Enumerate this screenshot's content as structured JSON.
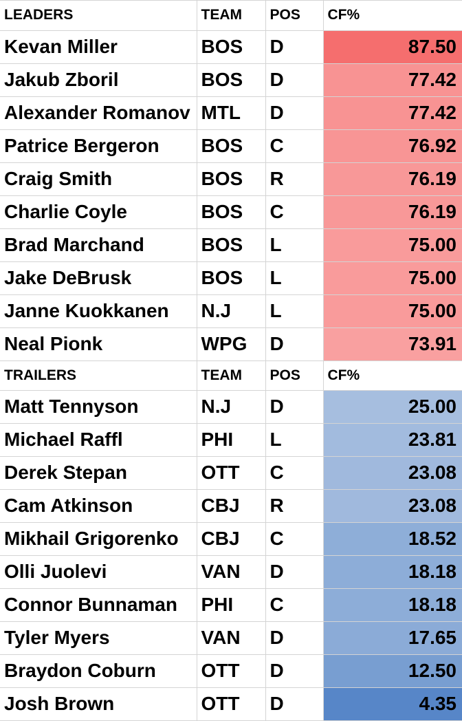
{
  "leaders": {
    "header": {
      "name": "LEADERS",
      "team": "TEAM",
      "pos": "POS",
      "cf": "CF%"
    },
    "rows": [
      {
        "name": "Kevan Miller",
        "team": "BOS",
        "pos": "D",
        "cf": "87.50",
        "color": "#f56e6e"
      },
      {
        "name": "Jakub Zboril",
        "team": "BOS",
        "pos": "D",
        "cf": "77.42",
        "color": "#f89393"
      },
      {
        "name": "Alexander Romanov",
        "team": "MTL",
        "pos": "D",
        "cf": "77.42",
        "color": "#f89393"
      },
      {
        "name": "Patrice Bergeron",
        "team": "BOS",
        "pos": "C",
        "cf": "76.92",
        "color": "#f89595"
      },
      {
        "name": "Craig Smith",
        "team": "BOS",
        "pos": "R",
        "cf": "76.19",
        "color": "#f89898"
      },
      {
        "name": "Charlie Coyle",
        "team": "BOS",
        "pos": "C",
        "cf": "76.19",
        "color": "#f89898"
      },
      {
        "name": "Brad Marchand",
        "team": "BOS",
        "pos": "L",
        "cf": "75.00",
        "color": "#f99b9b"
      },
      {
        "name": "Jake DeBrusk",
        "team": "BOS",
        "pos": "L",
        "cf": "75.00",
        "color": "#f99b9b"
      },
      {
        "name": "Janne Kuokkanen",
        "team": "N.J",
        "pos": "L",
        "cf": "75.00",
        "color": "#f99b9b"
      },
      {
        "name": "Neal Pionk",
        "team": "WPG",
        "pos": "D",
        "cf": "73.91",
        "color": "#f9a0a0"
      }
    ]
  },
  "trailers": {
    "header": {
      "name": "TRAILERS",
      "team": "TEAM",
      "pos": "POS",
      "cf": "CF%"
    },
    "rows": [
      {
        "name": "Matt Tennyson",
        "team": "N.J",
        "pos": "D",
        "cf": "25.00",
        "color": "#a6bedf"
      },
      {
        "name": "Michael Raffl",
        "team": "PHI",
        "pos": "L",
        "cf": "23.81",
        "color": "#a2bbde"
      },
      {
        "name": "Derek Stepan",
        "team": "OTT",
        "pos": "C",
        "cf": "23.08",
        "color": "#a0b9dd"
      },
      {
        "name": "Cam Atkinson",
        "team": "CBJ",
        "pos": "R",
        "cf": "23.08",
        "color": "#a0b9dd"
      },
      {
        "name": "Mikhail Grigorenko",
        "team": "CBJ",
        "pos": "C",
        "cf": "18.52",
        "color": "#8eaed8"
      },
      {
        "name": "Olli Juolevi",
        "team": "VAN",
        "pos": "D",
        "cf": "18.18",
        "color": "#8dadd8"
      },
      {
        "name": "Connor Bunnaman",
        "team": "PHI",
        "pos": "C",
        "cf": "18.18",
        "color": "#8dadd8"
      },
      {
        "name": "Tyler Myers",
        "team": "VAN",
        "pos": "D",
        "cf": "17.65",
        "color": "#8babd7"
      },
      {
        "name": "Braydon Coburn",
        "team": "OTT",
        "pos": "D",
        "cf": "12.50",
        "color": "#789ed1"
      },
      {
        "name": "Josh Brown",
        "team": "OTT",
        "pos": "D",
        "cf": "4.35",
        "color": "#5786c8"
      }
    ]
  }
}
